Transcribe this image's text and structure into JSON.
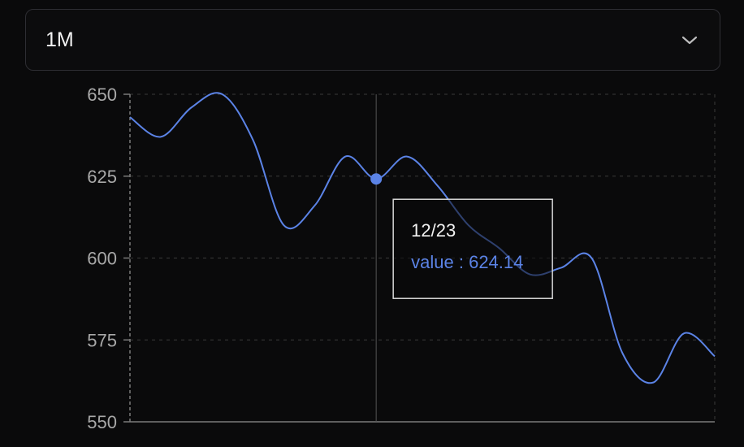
{
  "range_select": {
    "value": "1M",
    "icon": "chevron-down-icon"
  },
  "tooltip": {
    "date": "12/23",
    "label": "value : 624.14"
  },
  "colors": {
    "line": "#5b83e6",
    "tooltip_text": "#f2f2f2",
    "tooltip_value": "#5b83e6",
    "axis": "#7a7a7a",
    "grid": "#3a3a3a"
  },
  "chart_data": {
    "type": "line",
    "x": [
      0,
      1,
      2,
      3,
      4,
      5,
      6,
      7,
      8,
      9,
      10,
      11,
      12,
      13,
      14,
      15,
      16,
      17,
      18,
      19
    ],
    "values": [
      643,
      637,
      646,
      650,
      636,
      610,
      616,
      631,
      624.14,
      631,
      622,
      610,
      603,
      595,
      597,
      600,
      571,
      562,
      577,
      570
    ],
    "highlight_index": 8,
    "ylim": [
      550,
      650
    ],
    "yticks": [
      "550",
      "575",
      "600",
      "625",
      "650"
    ],
    "grid": true
  }
}
